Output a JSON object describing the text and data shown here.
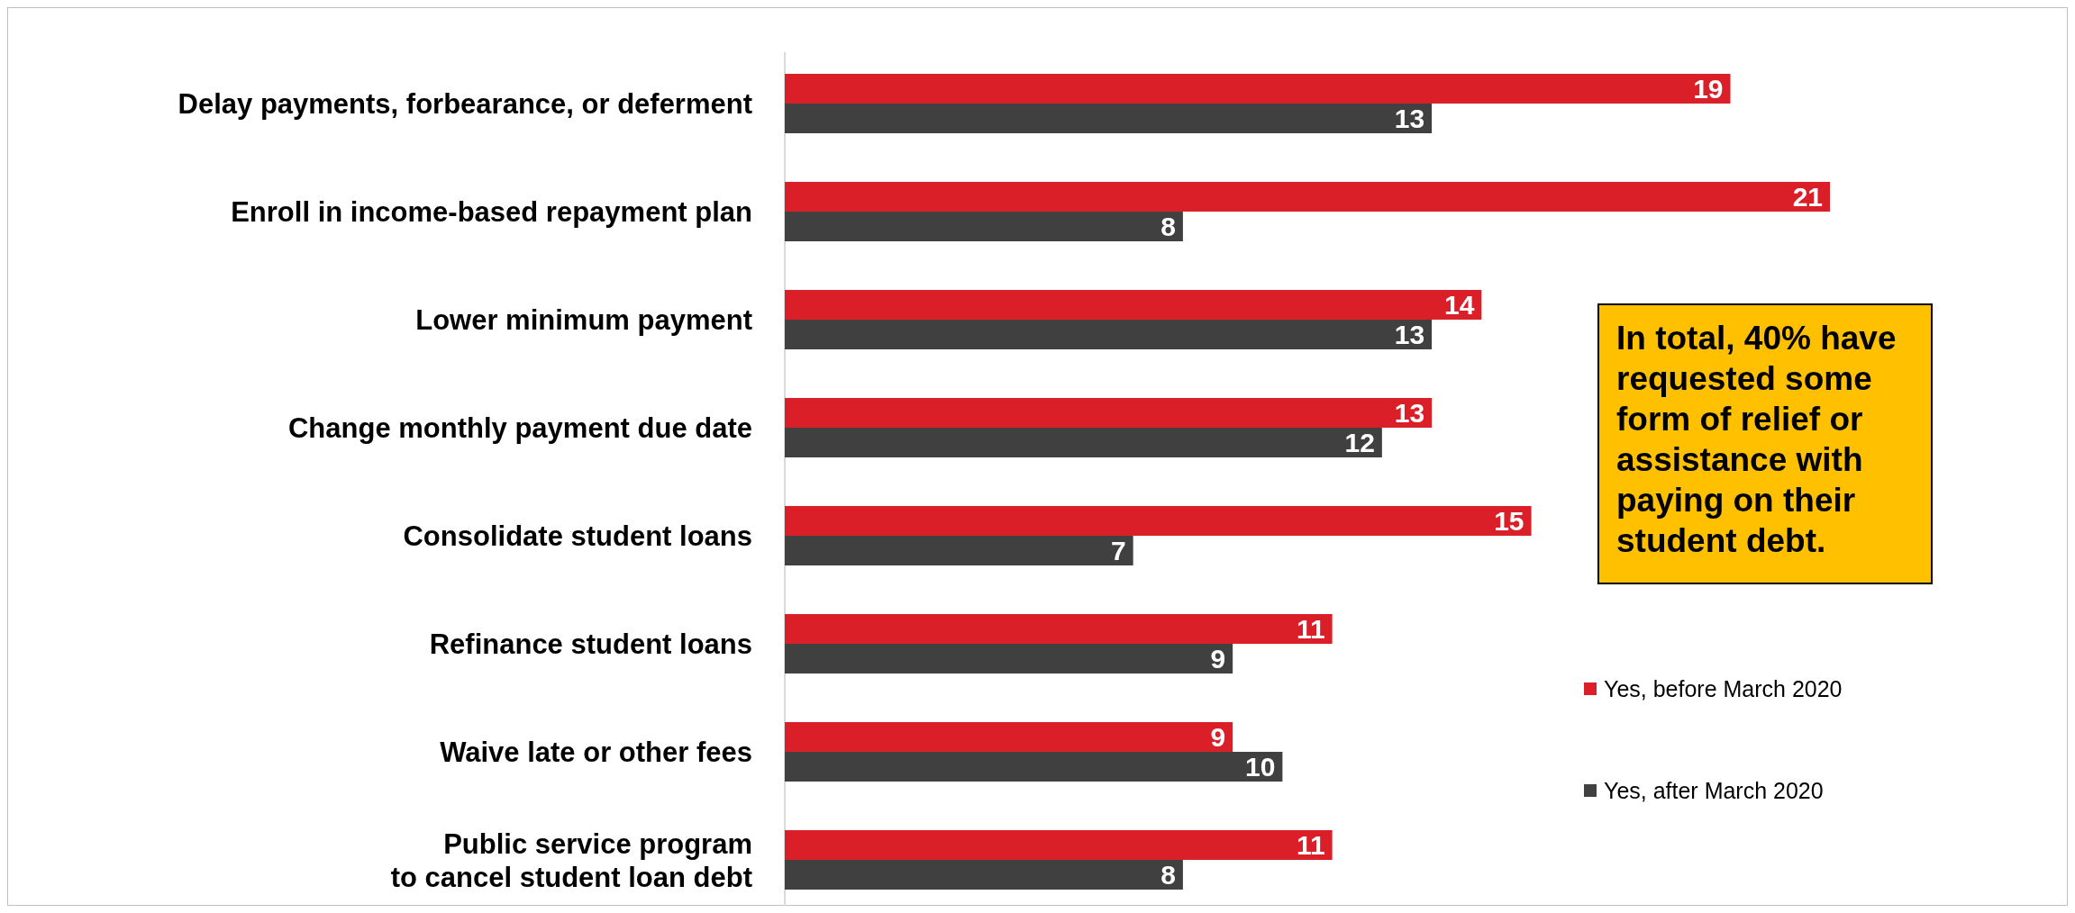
{
  "chart_data": {
    "type": "bar",
    "orientation": "horizontal",
    "categories": [
      "Delay payments, forbearance, or deferment",
      "Enroll in income-based repayment plan",
      "Lower minimum payment",
      "Change monthly payment due date",
      "Consolidate student loans",
      "Refinance student loans",
      "Waive late or other fees",
      "Public service program\nto cancel student loan debt"
    ],
    "series": [
      {
        "name": "Yes, before March 2020",
        "color": "#da1f28",
        "values": [
          19,
          21,
          14,
          13,
          15,
          11,
          9,
          11
        ]
      },
      {
        "name": "Yes, after March 2020",
        "color": "#404040",
        "values": [
          13,
          8,
          13,
          12,
          7,
          9,
          10,
          8
        ]
      }
    ],
    "data_labels": true,
    "legend": "right",
    "annotations": [
      "In total, 40% have requested some form of relief or assistance with paying on their student debt."
    ]
  }
}
